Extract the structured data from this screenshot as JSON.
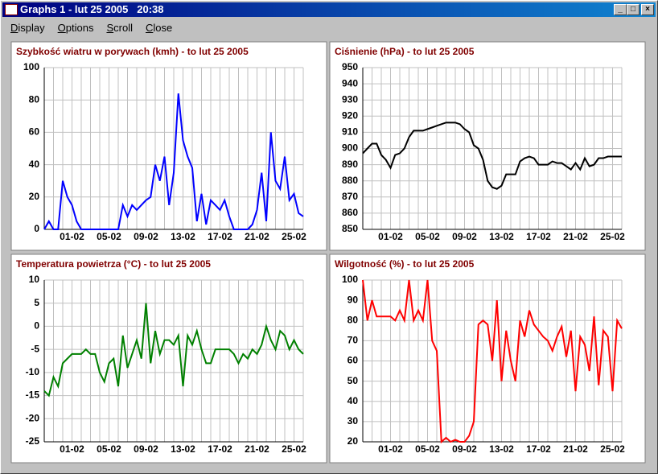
{
  "window": {
    "title": "Graphs 1 - lut 25 2005   20:38",
    "menu": [
      "Display",
      "Options",
      "Scroll",
      "Close"
    ]
  },
  "chart_data": [
    {
      "type": "line",
      "title": "Szybkość wiatru w porywach (kmh) - to lut 25 2005",
      "color": "#0000ff",
      "grid": true,
      "categories": [
        null,
        null,
        null,
        null,
        null,
        null,
        "01-02",
        null,
        null,
        null,
        null,
        null,
        null,
        null,
        "05-02",
        null,
        null,
        null,
        null,
        null,
        null,
        null,
        "09-02",
        null,
        null,
        null,
        null,
        null,
        null,
        null,
        "13-02",
        null,
        null,
        null,
        null,
        null,
        null,
        null,
        "17-02",
        null,
        null,
        null,
        null,
        null,
        null,
        null,
        "21-02",
        null,
        null,
        null,
        null,
        null,
        null,
        null,
        "25-02",
        null,
        null
      ],
      "values": [
        0,
        5,
        0,
        0,
        30,
        20,
        15,
        5,
        0,
        0,
        0,
        0,
        0,
        0,
        0,
        0,
        0,
        15,
        8,
        15,
        12,
        15,
        18,
        20,
        40,
        30,
        45,
        15,
        35,
        84,
        55,
        45,
        38,
        5,
        22,
        3,
        18,
        15,
        12,
        18,
        8,
        0,
        0,
        0,
        0,
        3,
        12,
        35,
        5,
        60,
        30,
        25,
        45,
        18,
        22,
        10,
        8
      ],
      "ylim": [
        0,
        100
      ],
      "yticks": [
        0,
        20,
        40,
        60,
        80,
        100
      ]
    },
    {
      "type": "line",
      "title": "Ciśnienie (hPa) - to lut 25 2005",
      "color": "#000000",
      "grid": true,
      "categories": [
        null,
        null,
        null,
        null,
        null,
        null,
        "01-02",
        null,
        null,
        null,
        null,
        null,
        null,
        null,
        "05-02",
        null,
        null,
        null,
        null,
        null,
        null,
        null,
        "09-02",
        null,
        null,
        null,
        null,
        null,
        null,
        null,
        "13-02",
        null,
        null,
        null,
        null,
        null,
        null,
        null,
        "17-02",
        null,
        null,
        null,
        null,
        null,
        null,
        null,
        "21-02",
        null,
        null,
        null,
        null,
        null,
        null,
        null,
        "25-02",
        null,
        null
      ],
      "values": [
        897,
        900,
        903,
        903,
        896,
        893,
        888,
        896,
        897,
        900,
        907,
        911,
        911,
        911,
        912,
        913,
        914,
        915,
        916,
        916,
        916,
        915,
        912,
        910,
        902,
        900,
        893,
        880,
        876,
        875,
        877,
        884,
        884,
        884,
        892,
        894,
        895,
        894,
        890,
        890,
        890,
        892,
        891,
        891,
        889,
        887,
        891,
        887,
        894,
        889,
        890,
        894,
        894,
        895,
        895,
        895,
        895
      ],
      "ylim": [
        850,
        950
      ],
      "yticks": [
        850,
        860,
        870,
        880,
        890,
        900,
        910,
        920,
        930,
        940,
        950
      ]
    },
    {
      "type": "line",
      "title": "Temperatura powietrza (°C) - to lut 25 2005",
      "color": "#008000",
      "grid": true,
      "categories": [
        null,
        null,
        null,
        null,
        null,
        null,
        "01-02",
        null,
        null,
        null,
        null,
        null,
        null,
        null,
        "05-02",
        null,
        null,
        null,
        null,
        null,
        null,
        null,
        "09-02",
        null,
        null,
        null,
        null,
        null,
        null,
        null,
        "13-02",
        null,
        null,
        null,
        null,
        null,
        null,
        null,
        "17-02",
        null,
        null,
        null,
        null,
        null,
        null,
        null,
        "21-02",
        null,
        null,
        null,
        null,
        null,
        null,
        null,
        "25-02",
        null,
        null
      ],
      "values": [
        -14,
        -15,
        -11,
        -13,
        -8,
        -7,
        -6,
        -6,
        -6,
        -5,
        -6,
        -6,
        -10,
        -12,
        -8,
        -7,
        -13,
        -2,
        -9,
        -6,
        -3,
        -7,
        5,
        -8,
        -1,
        -6,
        -3,
        -3,
        -4,
        -2,
        -13,
        -2,
        -4,
        -1,
        -5,
        -8,
        -8,
        -5,
        -5,
        -5,
        -5,
        -6,
        -8,
        -6,
        -7,
        -5,
        -6,
        -4,
        0,
        -3,
        -5,
        -1,
        -2,
        -5,
        -3,
        -5,
        -6
      ],
      "ylim": [
        -25,
        10
      ],
      "yticks": [
        -25,
        -20,
        -15,
        -10,
        -5,
        0,
        5,
        10
      ]
    },
    {
      "type": "line",
      "title": "Wilgotność (%) - to lut 25 2005",
      "color": "#ff0000",
      "grid": true,
      "categories": [
        null,
        null,
        null,
        null,
        null,
        null,
        "01-02",
        null,
        null,
        null,
        null,
        null,
        null,
        null,
        "05-02",
        null,
        null,
        null,
        null,
        null,
        null,
        null,
        "09-02",
        null,
        null,
        null,
        null,
        null,
        null,
        null,
        "13-02",
        null,
        null,
        null,
        null,
        null,
        null,
        null,
        "17-02",
        null,
        null,
        null,
        null,
        null,
        null,
        null,
        "21-02",
        null,
        null,
        null,
        null,
        null,
        null,
        null,
        "25-02",
        null,
        null
      ],
      "values": [
        100,
        80,
        90,
        82,
        82,
        82,
        82,
        80,
        85,
        80,
        100,
        80,
        85,
        80,
        100,
        70,
        65,
        20,
        22,
        20,
        21,
        20,
        20,
        23,
        30,
        78,
        80,
        78,
        60,
        90,
        50,
        75,
        60,
        50,
        80,
        72,
        85,
        78,
        75,
        72,
        70,
        65,
        72,
        77,
        62,
        75,
        45,
        72,
        68,
        55,
        82,
        48,
        75,
        72,
        45,
        80,
        76
      ],
      "ylim": [
        20,
        100
      ],
      "yticks": [
        20,
        30,
        40,
        50,
        60,
        70,
        80,
        90,
        100
      ]
    }
  ]
}
